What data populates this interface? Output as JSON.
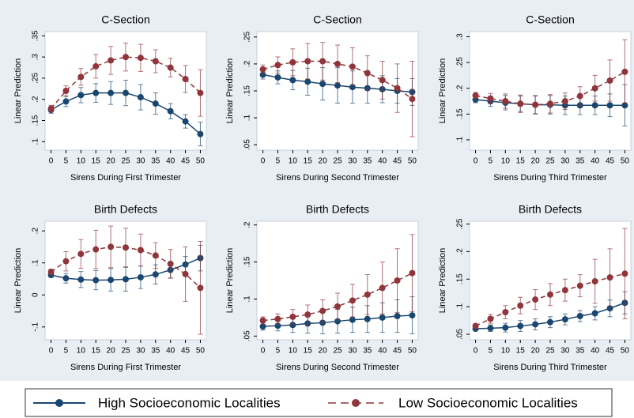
{
  "chart_data": [
    {
      "type": "errorbar-line",
      "title": "C-Section",
      "x_label": "Sirens During First Trimester",
      "y_label": "Linear Prediction",
      "x": [
        0,
        5,
        10,
        15,
        20,
        25,
        30,
        35,
        40,
        45,
        50
      ],
      "xlim": [
        -2,
        52
      ],
      "xticks": [
        0,
        5,
        10,
        15,
        20,
        25,
        30,
        35,
        40,
        45,
        50
      ],
      "ylim": [
        0.08,
        0.36
      ],
      "yticks": [
        {
          "value": 0.1,
          "label": ".1"
        },
        {
          "value": 0.15,
          "label": ".15"
        },
        {
          "value": 0.2,
          "label": ".2"
        },
        {
          "value": 0.25,
          "label": ".25"
        },
        {
          "value": 0.3,
          "label": ".3"
        },
        {
          "value": 0.35,
          "label": ".35"
        }
      ],
      "series": [
        {
          "name": "High Socioeconomic Localities",
          "color": "#1a476f",
          "line_style": "solid",
          "values": [
            0.175,
            0.195,
            0.21,
            0.215,
            0.215,
            0.215,
            0.205,
            0.19,
            0.172,
            0.148,
            0.118
          ],
          "errors": [
            0.008,
            0.012,
            0.018,
            0.022,
            0.027,
            0.03,
            0.03,
            0.025,
            0.018,
            0.016,
            0.028
          ]
        },
        {
          "name": "Low Socioeconomic Localities",
          "color": "#90353b",
          "line_style": "dashed",
          "values": [
            0.178,
            0.22,
            0.253,
            0.278,
            0.292,
            0.3,
            0.298,
            0.29,
            0.275,
            0.248,
            0.215
          ],
          "errors": [
            0.008,
            0.012,
            0.02,
            0.028,
            0.033,
            0.033,
            0.032,
            0.027,
            0.022,
            0.032,
            0.055
          ]
        }
      ]
    },
    {
      "type": "errorbar-line",
      "title": "C-Section",
      "x_label": "Sirens During Second Trimester",
      "y_label": "Linear Prediction",
      "x": [
        0,
        5,
        10,
        15,
        20,
        25,
        30,
        35,
        40,
        45,
        50
      ],
      "xlim": [
        -2,
        52
      ],
      "xticks": [
        0,
        5,
        10,
        15,
        20,
        25,
        30,
        35,
        40,
        45,
        50
      ],
      "ylim": [
        0.04,
        0.26
      ],
      "yticks": [
        {
          "value": 0.05,
          "label": ".05"
        },
        {
          "value": 0.1,
          "label": ".1"
        },
        {
          "value": 0.15,
          "label": ".15"
        },
        {
          "value": 0.2,
          "label": ".2"
        },
        {
          "value": 0.25,
          "label": ".25"
        }
      ],
      "series": [
        {
          "name": "High Socioeconomic Localities",
          "color": "#1a476f",
          "line_style": "solid",
          "values": [
            0.18,
            0.175,
            0.17,
            0.167,
            0.163,
            0.16,
            0.157,
            0.155,
            0.153,
            0.15,
            0.148
          ],
          "errors": [
            0.008,
            0.012,
            0.018,
            0.025,
            0.03,
            0.033,
            0.03,
            0.028,
            0.025,
            0.023,
            0.025
          ]
        },
        {
          "name": "Low Socioeconomic Localities",
          "color": "#90353b",
          "line_style": "dashed",
          "values": [
            0.19,
            0.198,
            0.203,
            0.205,
            0.205,
            0.2,
            0.195,
            0.183,
            0.17,
            0.155,
            0.135
          ],
          "errors": [
            0.008,
            0.015,
            0.025,
            0.033,
            0.035,
            0.035,
            0.035,
            0.032,
            0.035,
            0.045,
            0.07
          ]
        }
      ]
    },
    {
      "type": "errorbar-line",
      "title": "C-Section",
      "x_label": "Sirens During Third Trimester",
      "y_label": "Linear Prediction",
      "x": [
        0,
        5,
        10,
        15,
        20,
        25,
        30,
        35,
        40,
        45,
        50
      ],
      "xlim": [
        -2,
        52
      ],
      "xticks": [
        0,
        5,
        10,
        15,
        20,
        25,
        30,
        35,
        40,
        45,
        50
      ],
      "ylim": [
        0.08,
        0.31
      ],
      "yticks": [
        {
          "value": 0.1,
          "label": ".1"
        },
        {
          "value": 0.15,
          "label": ".15"
        },
        {
          "value": 0.2,
          "label": ".2"
        },
        {
          "value": 0.25,
          "label": ".25"
        },
        {
          "value": 0.3,
          "label": ".3"
        }
      ],
      "series": [
        {
          "name": "High Socioeconomic Localities",
          "color": "#1a476f",
          "line_style": "solid",
          "values": [
            0.178,
            0.175,
            0.172,
            0.17,
            0.168,
            0.168,
            0.167,
            0.167,
            0.167,
            0.167,
            0.167
          ],
          "errors": [
            0.006,
            0.01,
            0.014,
            0.015,
            0.017,
            0.018,
            0.018,
            0.018,
            0.018,
            0.022,
            0.04
          ]
        },
        {
          "name": "Low Socioeconomic Localities",
          "color": "#90353b",
          "line_style": "dashed",
          "values": [
            0.186,
            0.18,
            0.175,
            0.17,
            0.168,
            0.17,
            0.175,
            0.185,
            0.2,
            0.215,
            0.232
          ],
          "errors": [
            0.006,
            0.01,
            0.014,
            0.017,
            0.018,
            0.018,
            0.016,
            0.018,
            0.025,
            0.04,
            0.062
          ]
        }
      ]
    },
    {
      "type": "errorbar-line",
      "title": "Birth Defects",
      "x_label": "Sirens During First Trimester",
      "y_label": "Linear Prediction",
      "x": [
        0,
        5,
        10,
        15,
        20,
        25,
        30,
        35,
        40,
        45,
        50
      ],
      "xlim": [
        -2,
        52
      ],
      "xticks": [
        0,
        5,
        10,
        15,
        20,
        25,
        30,
        35,
        40,
        45,
        50
      ],
      "ylim": [
        -0.14,
        0.23
      ],
      "yticks": [
        {
          "value": -0.1,
          "label": "-.1"
        },
        0,
        {
          "value": 0.1,
          "label": ".1"
        },
        {
          "value": 0.2,
          "label": ".2"
        }
      ],
      "series": [
        {
          "name": "High Socioeconomic Localities",
          "color": "#1a476f",
          "line_style": "solid",
          "values": [
            0.062,
            0.052,
            0.048,
            0.046,
            0.047,
            0.049,
            0.055,
            0.064,
            0.078,
            0.095,
            0.115
          ],
          "errors": [
            0.007,
            0.015,
            0.025,
            0.03,
            0.035,
            0.037,
            0.035,
            0.03,
            0.025,
            0.025,
            0.04
          ]
        },
        {
          "name": "Low Socioeconomic Localities",
          "color": "#90353b",
          "line_style": "dashed",
          "values": [
            0.072,
            0.105,
            0.128,
            0.142,
            0.15,
            0.148,
            0.14,
            0.123,
            0.097,
            0.065,
            0.022
          ],
          "errors": [
            0.008,
            0.03,
            0.045,
            0.06,
            0.065,
            0.06,
            0.05,
            0.04,
            0.045,
            0.085,
            0.145
          ]
        }
      ]
    },
    {
      "type": "errorbar-line",
      "title": "Birth Defects",
      "x_label": "Sirens During Second Trimester",
      "y_label": "Linear Prediction",
      "x": [
        0,
        5,
        10,
        15,
        20,
        25,
        30,
        35,
        40,
        45,
        50
      ],
      "xlim": [
        -2,
        52
      ],
      "xticks": [
        0,
        5,
        10,
        15,
        20,
        25,
        30,
        35,
        40,
        45,
        50
      ],
      "ylim": [
        0.045,
        0.205
      ],
      "yticks": [
        {
          "value": 0.05,
          "label": ".05"
        },
        {
          "value": 0.1,
          "label": ".1"
        },
        {
          "value": 0.15,
          "label": ".15"
        },
        {
          "value": 0.2,
          "label": ".2"
        }
      ],
      "series": [
        {
          "name": "High Socioeconomic Localities",
          "color": "#1a476f",
          "line_style": "solid",
          "values": [
            0.063,
            0.064,
            0.065,
            0.067,
            0.068,
            0.07,
            0.072,
            0.073,
            0.075,
            0.077,
            0.078
          ],
          "errors": [
            0.005,
            0.007,
            0.01,
            0.013,
            0.015,
            0.016,
            0.017,
            0.018,
            0.02,
            0.022,
            0.025
          ]
        },
        {
          "name": "Low Socioeconomic Localities",
          "color": "#90353b",
          "line_style": "dashed",
          "values": [
            0.071,
            0.073,
            0.076,
            0.079,
            0.084,
            0.09,
            0.098,
            0.106,
            0.115,
            0.125,
            0.135
          ],
          "errors": [
            0.005,
            0.007,
            0.01,
            0.013,
            0.015,
            0.018,
            0.022,
            0.027,
            0.035,
            0.043,
            0.052
          ]
        }
      ]
    },
    {
      "type": "errorbar-line",
      "title": "Birth Defects",
      "x_label": "Sirens During Third Trimester",
      "y_label": "Linear Prediction",
      "x": [
        0,
        5,
        10,
        15,
        20,
        25,
        30,
        35,
        40,
        45,
        50
      ],
      "xlim": [
        -2,
        52
      ],
      "xticks": [
        0,
        5,
        10,
        15,
        20,
        25,
        30,
        35,
        40,
        45,
        50
      ],
      "ylim": [
        0.04,
        0.255
      ],
      "yticks": [
        {
          "value": 0.05,
          "label": ".05"
        },
        {
          "value": 0.1,
          "label": ".1"
        },
        {
          "value": 0.15,
          "label": ".15"
        },
        {
          "value": 0.2,
          "label": ".2"
        },
        {
          "value": 0.25,
          "label": ".25"
        }
      ],
      "series": [
        {
          "name": "High Socioeconomic Localities",
          "color": "#1a476f",
          "line_style": "solid",
          "values": [
            0.06,
            0.061,
            0.062,
            0.065,
            0.068,
            0.072,
            0.077,
            0.083,
            0.088,
            0.097,
            0.107
          ],
          "errors": [
            0.004,
            0.006,
            0.008,
            0.01,
            0.01,
            0.01,
            0.01,
            0.01,
            0.012,
            0.015,
            0.02
          ]
        },
        {
          "name": "Low Socioeconomic Localities",
          "color": "#90353b",
          "line_style": "dashed",
          "values": [
            0.065,
            0.078,
            0.09,
            0.102,
            0.113,
            0.122,
            0.13,
            0.138,
            0.146,
            0.153,
            0.16
          ],
          "errors": [
            0.004,
            0.008,
            0.012,
            0.015,
            0.018,
            0.02,
            0.02,
            0.02,
            0.04,
            0.052,
            0.082
          ]
        }
      ]
    }
  ]
}
